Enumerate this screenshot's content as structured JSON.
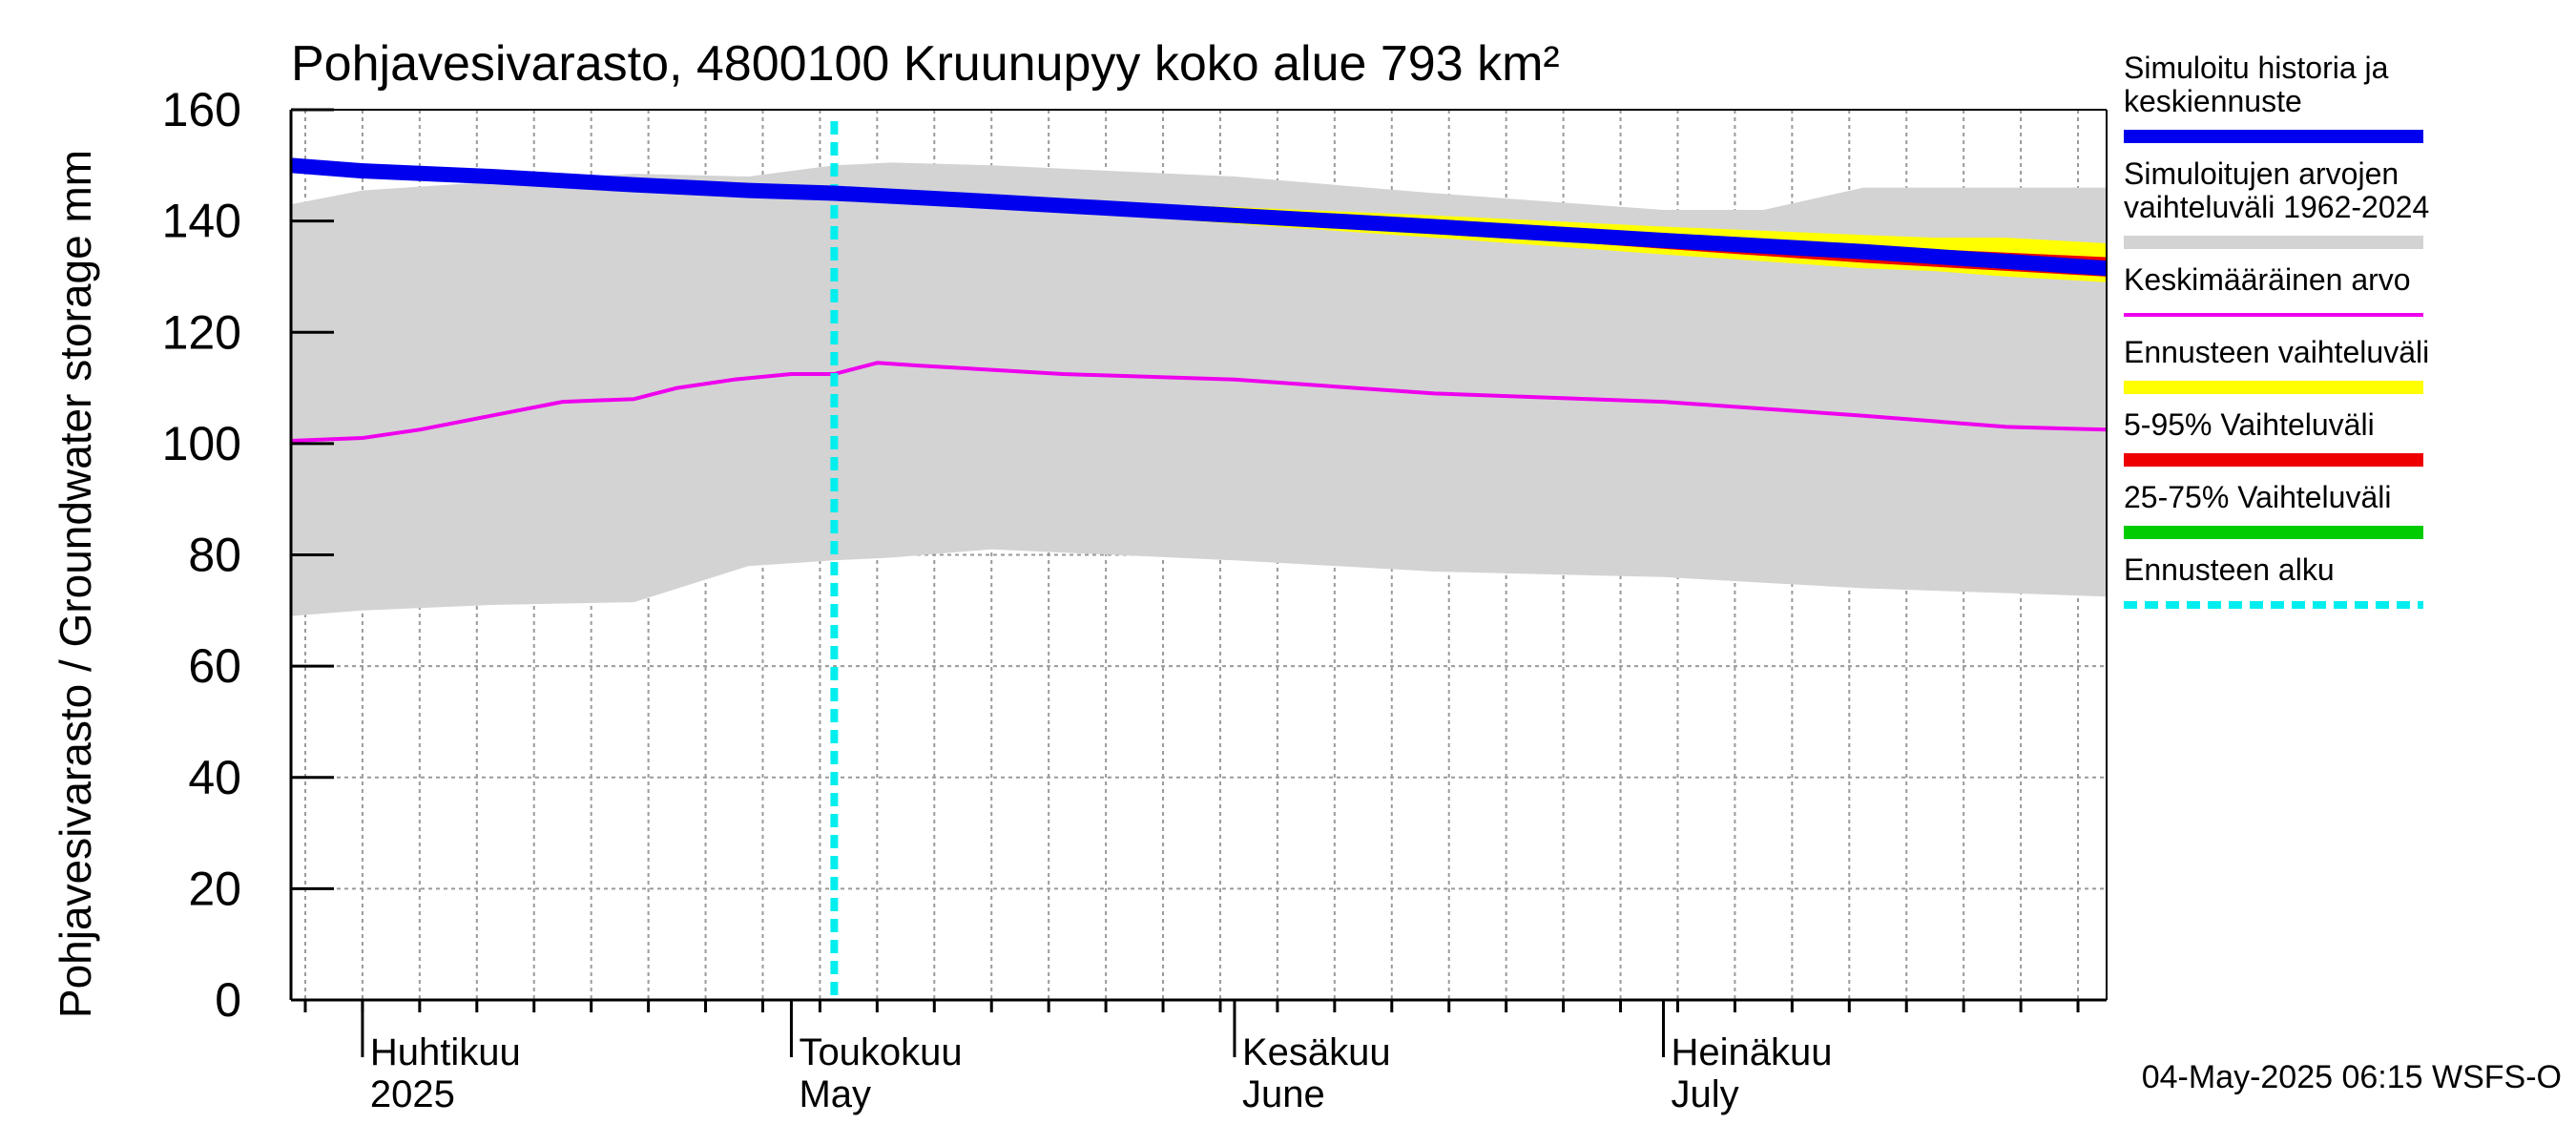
{
  "chart_data": {
    "type": "area",
    "title": "Pohjavesivarasto, 4800100 Kruunupyy koko alue 793 km²",
    "ylabel": "Pohjavesivarasto / Groundwater storage   mm",
    "ylim": [
      0,
      160
    ],
    "y_ticks": [
      0,
      20,
      40,
      60,
      80,
      100,
      120,
      140,
      160
    ],
    "xlim": [
      "2025-03-27",
      "2025-08-01"
    ],
    "x_month_labels": [
      {
        "date": "2025-04-01",
        "fi": "Huhtikuu",
        "en": "2025"
      },
      {
        "date": "2025-05-01",
        "fi": "Toukokuu",
        "en": "May"
      },
      {
        "date": "2025-06-01",
        "fi": "Kesäkuu",
        "en": "June"
      },
      {
        "date": "2025-07-01",
        "fi": "Heinäkuu",
        "en": "July"
      }
    ],
    "grid": true,
    "legend_position": "right",
    "forecast_start": "2025-05-04",
    "colors": {
      "history": "#0000ee",
      "range_all": "#d3d3d3",
      "mean": "#ee00ee",
      "forecast_range": "#ffff00",
      "p5_95": "#ee0000",
      "p25_75": "#00cc00",
      "forecast_start": "#00eeee"
    },
    "series": [
      {
        "name": "Simuloitujen arvojen vaihteluväli 1962-2024",
        "role": "range_all",
        "dates": [
          "2025-03-27",
          "2025-04-01",
          "2025-04-10",
          "2025-04-20",
          "2025-04-28",
          "2025-05-04",
          "2025-05-08",
          "2025-05-15",
          "2025-06-01",
          "2025-06-15",
          "2025-07-01",
          "2025-07-08",
          "2025-07-15",
          "2025-08-01"
        ],
        "upper": [
          143,
          145.5,
          147,
          148.5,
          148,
          150,
          150.5,
          150,
          148,
          145,
          142,
          142,
          146,
          146
        ],
        "lower": [
          69,
          70,
          71,
          71.5,
          78,
          79,
          79.5,
          81,
          79,
          77,
          76,
          75,
          74,
          72.5
        ]
      },
      {
        "name": "Ennusteen vaihteluväli",
        "role": "forecast_range",
        "dates": [
          "2025-05-04",
          "2025-05-15",
          "2025-06-01",
          "2025-06-15",
          "2025-07-01",
          "2025-07-15",
          "2025-07-20",
          "2025-07-25",
          "2025-08-01"
        ],
        "upper": [
          145,
          144,
          142.5,
          141,
          139,
          137.5,
          137,
          137,
          136
        ],
        "lower": [
          145,
          142.5,
          139.5,
          137,
          134,
          131.5,
          131,
          130,
          129
        ]
      },
      {
        "name": "5-95% Vaihteluväli",
        "role": "p5_95",
        "dates": [
          "2025-05-04",
          "2025-05-15",
          "2025-06-01",
          "2025-06-15",
          "2025-07-01",
          "2025-07-15",
          "2025-08-01"
        ],
        "upper": [
          145,
          143.5,
          142,
          140,
          137.5,
          135.5,
          133.5
        ],
        "lower": [
          145,
          142.5,
          140,
          138,
          135,
          132.5,
          130
        ]
      },
      {
        "name": "25-75% Vaihteluväli",
        "role": "p25_75",
        "dates": [
          "2025-05-04",
          "2025-06-01",
          "2025-07-01",
          "2025-08-01"
        ],
        "upper": [
          145,
          141,
          136.5,
          132.5
        ],
        "lower": [
          145,
          140.5,
          135.5,
          131
        ]
      },
      {
        "name": "Keskimääräinen arvo",
        "role": "mean",
        "dates": [
          "2025-03-27",
          "2025-04-01",
          "2025-04-05",
          "2025-04-10",
          "2025-04-15",
          "2025-04-20",
          "2025-04-23",
          "2025-04-27",
          "2025-05-01",
          "2025-05-04",
          "2025-05-07",
          "2025-05-10",
          "2025-05-20",
          "2025-06-01",
          "2025-06-15",
          "2025-07-01",
          "2025-07-15",
          "2025-07-25",
          "2025-08-01"
        ],
        "values": [
          100.5,
          101,
          102.5,
          105,
          107.5,
          108,
          110,
          111.5,
          112.5,
          112.5,
          114.5,
          114,
          112.5,
          111.5,
          109,
          107.5,
          105,
          103,
          102.5
        ]
      },
      {
        "name": "Simuloitu historia ja keskiennuste",
        "role": "history",
        "dates": [
          "2025-03-27",
          "2025-04-01",
          "2025-04-10",
          "2025-04-20",
          "2025-04-28",
          "2025-05-04",
          "2025-05-15",
          "2025-06-01",
          "2025-06-15",
          "2025-07-01",
          "2025-07-15",
          "2025-08-01"
        ],
        "values": [
          150,
          149,
          148,
          146.5,
          145.5,
          145,
          143.5,
          141,
          139,
          136.5,
          134.5,
          131.5
        ]
      }
    ],
    "legend": [
      {
        "label_lines": [
          "Simuloitu historia ja",
          "keskiennuste"
        ],
        "role": "history"
      },
      {
        "label_lines": [
          "Simuloitujen arvojen",
          "vaihteluväli 1962-2024"
        ],
        "role": "range_all"
      },
      {
        "label_lines": [
          "Keskimääräinen arvo"
        ],
        "role": "mean"
      },
      {
        "label_lines": [
          "Ennusteen vaihteluväli"
        ],
        "role": "forecast_range"
      },
      {
        "label_lines": [
          "5-95% Vaihteluväli"
        ],
        "role": "p5_95"
      },
      {
        "label_lines": [
          "25-75% Vaihteluväli"
        ],
        "role": "p25_75"
      },
      {
        "label_lines": [
          "Ennusteen alku"
        ],
        "role": "forecast_start"
      }
    ],
    "timestamp": "04-May-2025 06:15 WSFS-O"
  }
}
